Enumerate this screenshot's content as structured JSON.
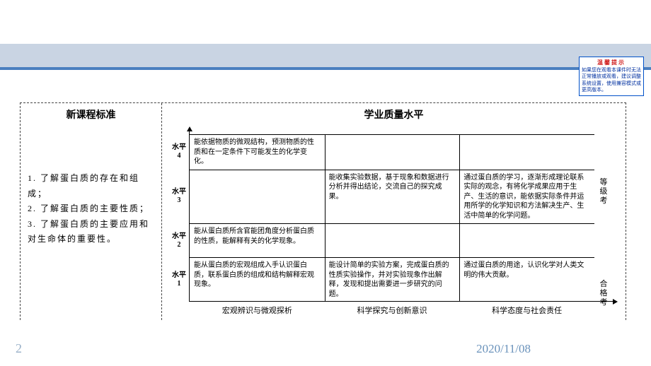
{
  "hint": {
    "title": "温馨提示",
    "body": "如果您在观看本课件时无法正常播放或观看，建议调整系统设置，使用兼容模式或更高版本。"
  },
  "left": {
    "heading": "新课程标准",
    "items": [
      "1. 了解蛋白质的存在和组成；",
      "2. 了解蛋白质的主要性质；",
      "3. 了解蛋白质的主要应用和对生命体的重要性。"
    ]
  },
  "right": {
    "heading": "学业质量水平",
    "y_labels": [
      "水平4",
      "水平3",
      "水平2",
      "水平1"
    ],
    "x_labels": [
      "宏观辨识与微观探析",
      "科学探究与创新意识",
      "科学态度与社会责任"
    ],
    "side_labels": {
      "advanced": "等级考",
      "pass": "合格考"
    },
    "cells": {
      "r4c1": "能依据物质的微观结构，预测物质的性质和在一定条件下可能发生的化学变化。",
      "r4c2": "",
      "r4c3": "",
      "r3c1": "",
      "r3c2": "能收集实验数据，基于现象和数据进行分析并得出结论，交流自己的探究成果。",
      "r3c3": "通过蛋白质的学习，逐渐形成理论联系实际的观念，有将化学成果应用于生产、生活的意识，能依据实际条件并运用所学的化学知识和方法解决生产、生活中简单的化学问题。",
      "r2c1": "能从蛋白质所含官能团角度分析蛋白质的性质，能解释有关的化学现象。",
      "r2c2": "",
      "r2c3": "",
      "r1c1": "能从蛋白质的宏观组成入手认识蛋白质，联系蛋白质的组成和结构解释宏观现象。",
      "r1c2": "能设计简单的实验方案，完成蛋白质的性质实验操作，并对实验现象作出解释，发现和提出需要进一步研究的问题。",
      "r1c3": "通过蛋白质的用途，认识化学对人类文明的伟大贡献。"
    }
  },
  "footer": {
    "page": "2",
    "date": "2020/11/08"
  },
  "colors": {
    "band": "#c9d4e3",
    "rule": "#4a7fbf",
    "footer_text": "#6a92bb",
    "pagenum": "#98b0c8",
    "hint_border": "#0050c8",
    "hint_title": "#d02020",
    "hint_body": "#0030a0"
  }
}
